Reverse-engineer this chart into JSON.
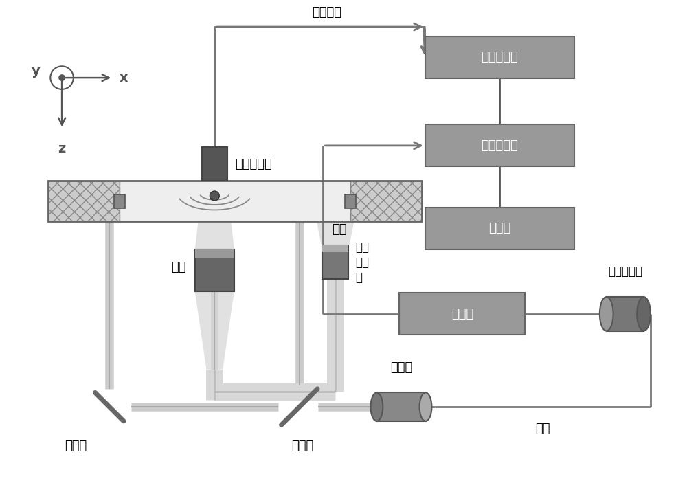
{
  "bg_color": "#ffffff",
  "box_fill": "#999999",
  "box_edge": "#666666",
  "dark_gray": "#555555",
  "mid_gray": "#888888",
  "light_gray": "#cccccc",
  "line_color": "#777777",
  "font_size": 13,
  "labels": {
    "photoacoustic": "光声信号",
    "amplifier": "信号放大器",
    "daq": "数据采集卡",
    "computer": "计算机",
    "laser": "激光器",
    "fiber_coupler": "光纤耦合器",
    "transducer": "超声换能器",
    "trigger": "触发",
    "objective": "物镜",
    "mirror": "反射镜",
    "beam_splitter": "分光镜",
    "collimator": "准直镜",
    "fiber": "光纤",
    "photodiode": "光电\n二极\n管"
  },
  "axis": {
    "x": "x",
    "y": "y",
    "z": "z"
  }
}
